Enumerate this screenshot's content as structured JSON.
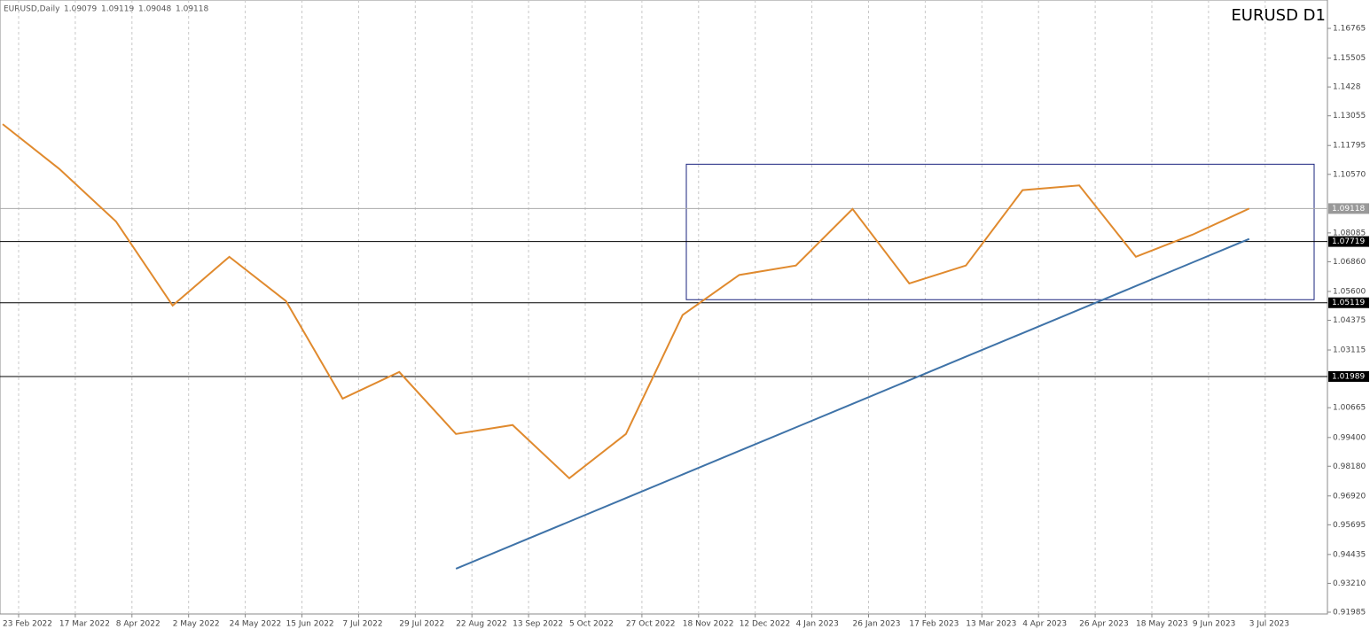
{
  "chart_data": {
    "type": "line",
    "title": "EURUSD D1",
    "symbol": "EURUSD,Daily",
    "ohlc": [
      1.09079,
      1.09119,
      1.09048,
      1.09118
    ],
    "categories": [
      "23 Feb 2022",
      "17 Mar 2022",
      "8 Apr 2022",
      "2 May 2022",
      "24 May 2022",
      "15 Jun 2022",
      "7 Jul 2022",
      "29 Jul 2022",
      "22 Aug 2022",
      "13 Sep 2022",
      "5 Oct 2022",
      "27 Oct 2022",
      "18 Nov 2022",
      "12 Dec 2022",
      "4 Jan 2023",
      "26 Jan 2023",
      "17 Feb 2023",
      "13 Mar 2023",
      "4 Apr 2023",
      "26 Apr 2023",
      "18 May 2023",
      "9 Jun 2023",
      "3 Jul 2023"
    ],
    "series": [
      {
        "color": "#e08a2e",
        "values": [
          1.127,
          1.108,
          1.0857,
          1.05,
          1.0707,
          1.0519,
          1.0105,
          1.0218,
          0.9955,
          0.9993,
          0.9767,
          0.9955,
          1.046,
          1.063,
          1.067,
          1.091,
          1.0594,
          1.067,
          1.099,
          1.101,
          1.0707,
          1.0801,
          1.09118
        ]
      },
      {
        "color": "#3f73a8",
        "values": [
          null,
          null,
          null,
          null,
          null,
          null,
          null,
          null,
          0.9383,
          0.9483,
          0.9583,
          0.9683,
          0.9783,
          0.9883,
          0.9983,
          1.0083,
          1.0183,
          1.0283,
          1.0383,
          1.0483,
          1.0583,
          1.0683,
          1.0783
        ]
      }
    ],
    "range_box": [
      1.0525,
      1.11
    ],
    "levels": [
      1.07719,
      1.05119,
      1.01989
    ],
    "current_price": 1.09118,
    "ylim": [
      0.9191,
      1.1797
    ],
    "yticks": [
      1.16765,
      1.15505,
      1.1428,
      1.13055,
      1.11795,
      {
        "value": 1.1057,
        "label": "1.10570"
      },
      1.08085,
      {
        "value": 1.0686,
        "label": "1.06860"
      },
      {
        "value": 1.056,
        "label": "1.05600"
      },
      1.04375,
      1.03115,
      1.00665,
      {
        "value": 0.994,
        "label": "0.99400"
      },
      {
        "value": 0.9818,
        "label": "0.98180"
      },
      {
        "value": 0.9692,
        "label": "0.96920"
      },
      0.95695,
      0.94435,
      {
        "value": 0.9321,
        "label": "0.93210"
      },
      0.91985
    ],
    "grid": true
  }
}
